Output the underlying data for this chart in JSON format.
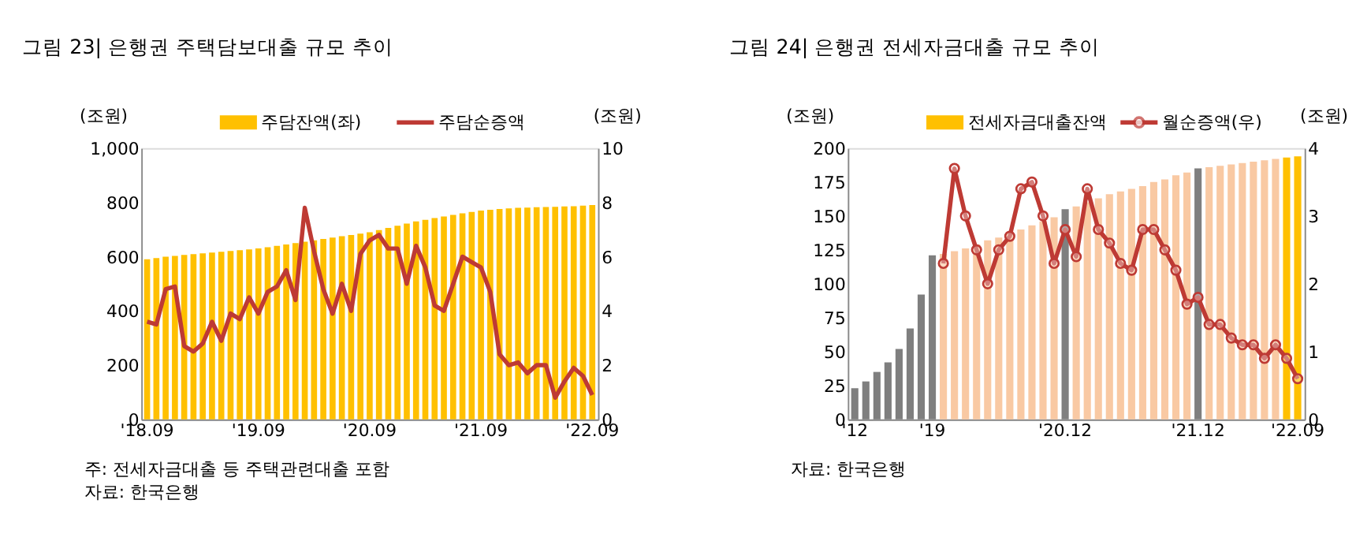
{
  "chart_data": [
    {
      "type": "bar",
      "title": "그림 23| 은행권 주택담보대출 규모 추이",
      "ylabel": "(조원)",
      "y2label": "(조원)",
      "categories": [
        "'18.09",
        null,
        null,
        null,
        null,
        null,
        null,
        null,
        null,
        null,
        null,
        null,
        "'19.09",
        null,
        null,
        null,
        null,
        null,
        null,
        null,
        null,
        null,
        null,
        null,
        "'20.09",
        null,
        null,
        null,
        null,
        null,
        null,
        null,
        null,
        null,
        null,
        null,
        "'21.09",
        null,
        null,
        null,
        null,
        null,
        null,
        null,
        null,
        null,
        null,
        null,
        "'22.09"
      ],
      "series": [
        {
          "name": "주담잔액(좌)",
          "color": "#ffc000",
          "values": [
            590,
            595,
            600,
            603,
            606,
            609,
            612,
            615,
            618,
            621,
            624,
            627,
            630,
            635,
            640,
            645,
            650,
            655,
            660,
            665,
            670,
            675,
            680,
            685,
            690,
            698,
            706,
            714,
            722,
            730,
            736,
            742,
            748,
            754,
            760,
            765,
            770,
            773,
            776,
            778,
            780,
            781,
            782,
            783,
            784,
            785,
            786,
            788,
            790
          ]
        },
        {
          "name": "주담순증액",
          "type": "line",
          "axis": "y2",
          "color": "#be3a34",
          "marker": "none",
          "values": [
            3.6,
            3.5,
            4.8,
            4.9,
            2.7,
            2.5,
            2.8,
            3.6,
            2.9,
            3.9,
            3.7,
            4.5,
            3.9,
            4.7,
            4.9,
            5.5,
            4.4,
            7.8,
            6.2,
            4.8,
            3.9,
            5.0,
            4.0,
            6.1,
            6.6,
            6.8,
            6.3,
            6.3,
            5.0,
            6.4,
            5.6,
            4.2,
            4.0,
            5.0,
            6.0,
            5.8,
            5.6,
            4.7,
            2.4,
            2.0,
            2.1,
            1.7,
            2.0,
            2.0,
            0.8,
            1.4,
            1.9,
            1.6,
            0.9
          ]
        }
      ],
      "ylim": [
        0,
        1000
      ],
      "yticks": [
        0,
        200,
        400,
        600,
        800,
        {
          "value": 1000,
          "label": "1,000"
        }
      ],
      "y2lim": [
        0,
        10
      ],
      "y2ticks": [
        0,
        2,
        4,
        6,
        8,
        10
      ],
      "legend": "top",
      "grid": false,
      "annotations": [
        "주: 전세자금대출 등 주택관련대출 포함",
        "자료: 한국은행"
      ]
    },
    {
      "type": "bar",
      "title": "그림 24| 은행권 전세자금대출 규모 추이",
      "ylabel": "(조원)",
      "y2label": "(조원)",
      "categories": [
        "'12",
        null,
        null,
        null,
        null,
        null,
        null,
        "'19",
        null,
        null,
        null,
        null,
        null,
        null,
        null,
        null,
        null,
        null,
        null,
        "'20.12",
        null,
        null,
        null,
        null,
        null,
        null,
        null,
        null,
        null,
        null,
        null,
        "'21.12",
        null,
        null,
        null,
        null,
        null,
        null,
        null,
        null,
        "'22.09"
      ],
      "series": [
        {
          "name": "전세자금대출잔액",
          "color": "#ffc000",
          "values": [
            23,
            28,
            35,
            42,
            52,
            67,
            92,
            121,
            122,
            124,
            126,
            129,
            132,
            134,
            137,
            140,
            143,
            146,
            149,
            155,
            157,
            160,
            163,
            166,
            168,
            170,
            172,
            175,
            177,
            180,
            182,
            185,
            186,
            187,
            188,
            189,
            190,
            191,
            192,
            193,
            194
          ],
          "colors": [
            "#7f7f7f",
            "#7f7f7f",
            "#7f7f7f",
            "#7f7f7f",
            "#7f7f7f",
            "#7f7f7f",
            "#7f7f7f",
            "#7f7f7f",
            "#f9c9a3",
            "#f9c9a3",
            "#f9c9a3",
            "#f9c9a3",
            "#f9c9a3",
            "#f9c9a3",
            "#f9c9a3",
            "#f9c9a3",
            "#f9c9a3",
            "#f9c9a3",
            "#f9c9a3",
            "#7f7f7f",
            "#f9c9a3",
            "#f9c9a3",
            "#f9c9a3",
            "#f9c9a3",
            "#f9c9a3",
            "#f9c9a3",
            "#f9c9a3",
            "#f9c9a3",
            "#f9c9a3",
            "#f9c9a3",
            "#f9c9a3",
            "#7f7f7f",
            "#f9c9a3",
            "#f9c9a3",
            "#f9c9a3",
            "#f9c9a3",
            "#f9c9a3",
            "#f9c9a3",
            "#f9c9a3",
            "#ffc000",
            "#ffc000"
          ]
        },
        {
          "name": "월순증액(우)",
          "type": "line",
          "axis": "y2",
          "color": "#be3a34",
          "marker": "circle",
          "values": [
            null,
            null,
            null,
            null,
            null,
            null,
            null,
            null,
            2.3,
            3.7,
            3.0,
            2.5,
            2.0,
            2.5,
            2.7,
            3.4,
            3.5,
            3.0,
            2.3,
            2.8,
            2.4,
            3.4,
            2.8,
            2.6,
            2.3,
            2.2,
            2.8,
            2.8,
            2.5,
            2.2,
            1.7,
            1.8,
            1.4,
            1.4,
            1.2,
            1.1,
            1.1,
            0.9,
            1.1,
            0.9,
            0.6
          ]
        }
      ],
      "ylim": [
        0,
        200
      ],
      "yticks": [
        0,
        25,
        50,
        75,
        100,
        125,
        150,
        175,
        200
      ],
      "y2lim": [
        0,
        4
      ],
      "y2ticks": [
        0,
        1,
        2,
        3,
        4
      ],
      "legend": "top",
      "grid": false,
      "annotations": [
        "자료: 한국은행"
      ]
    }
  ]
}
